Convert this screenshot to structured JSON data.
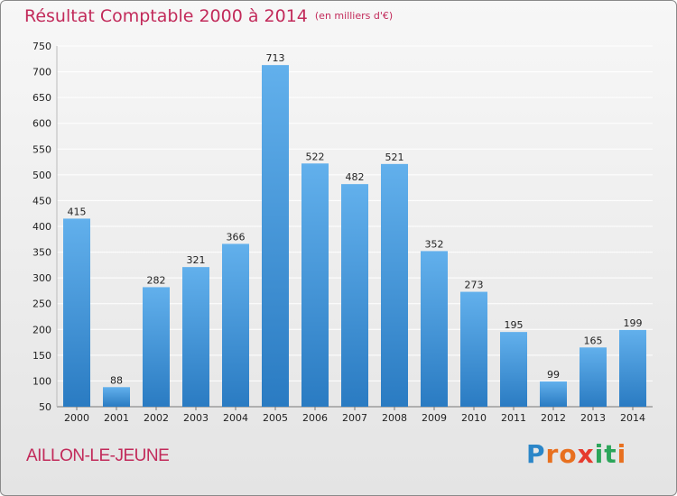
{
  "chart_data": {
    "type": "bar",
    "title": "Résultat Comptable 2000 à 2014",
    "subtitle": "(en milliers d'€)",
    "categories": [
      "2000",
      "2001",
      "2002",
      "2003",
      "2004",
      "2005",
      "2006",
      "2007",
      "2008",
      "2009",
      "2010",
      "2011",
      "2012",
      "2013",
      "2014"
    ],
    "values": [
      415,
      88,
      282,
      321,
      366,
      713,
      522,
      482,
      521,
      352,
      273,
      195,
      99,
      165,
      199
    ],
    "ylim": [
      50,
      750
    ],
    "yticks": [
      50,
      100,
      150,
      200,
      250,
      300,
      350,
      400,
      450,
      500,
      550,
      600,
      650,
      700,
      750
    ],
    "xlabel": "",
    "ylabel": "",
    "grid": true,
    "bar_color": "#3d8fd6"
  },
  "footer": {
    "place": "AILLON-LE-JEUNE",
    "brand_letters": [
      "P",
      "r",
      "o",
      "x",
      "i",
      "t",
      "i"
    ],
    "brand_colors": [
      "#2b86c8",
      "#e8701f",
      "#e8701f",
      "#e63b2e",
      "#2ca55a",
      "#2ca55a",
      "#e8701f"
    ]
  },
  "colors": {
    "title": "#c22a5a",
    "grid": "#ffffff",
    "bar_light": "#62b0ec",
    "bar_dark": "#2a7bc2"
  }
}
